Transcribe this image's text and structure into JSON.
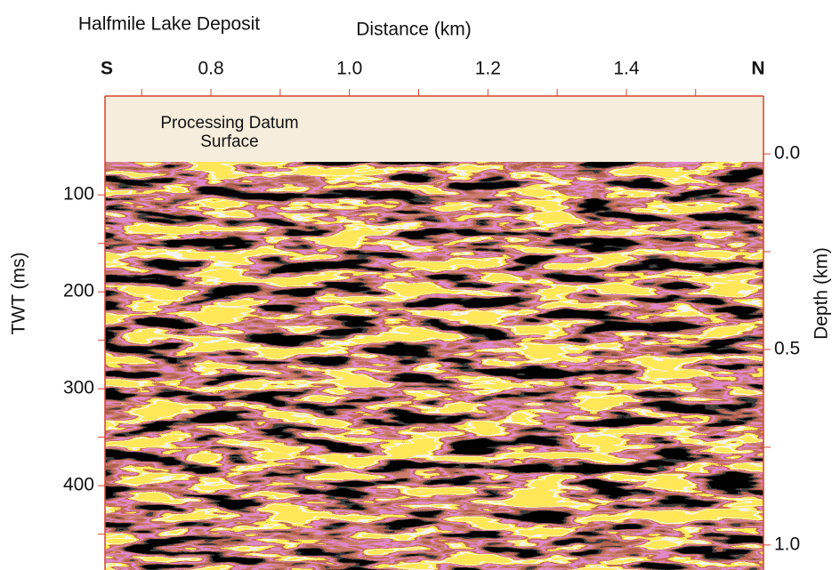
{
  "chart_data": {
    "type": "seismic",
    "title": "Halfmile Lake Deposit",
    "xlabel": "Distance (km)",
    "ylabel": "TWT (ms)",
    "y2label": "Depth (km)",
    "left_end_label": "S",
    "right_end_label": "N",
    "annotations": [
      "Processing Datum",
      "Surface"
    ],
    "xlim": [
      0.647,
      1.598
    ],
    "xticks": [
      {
        "value": 0.8,
        "label": "0.8"
      },
      {
        "value": 1,
        "label": "1.0"
      },
      {
        "value": 1.2,
        "label": "1.2"
      },
      {
        "value": 1.4,
        "label": "1.4"
      }
    ],
    "xminor_ticks": [
      0.7,
      0.9,
      1.1,
      1.3,
      1.5
    ],
    "ylim": [
      -2,
      487
    ],
    "yticks": [
      100,
      200,
      300,
      400
    ],
    "yminor_ticks": [
      150,
      250,
      350,
      450
    ],
    "y2lim": [
      -0.148,
      1.064
    ],
    "y2ticks": [
      {
        "value": 0,
        "label": "0.0"
      },
      {
        "value": 0.5,
        "label": "0.5"
      },
      {
        "value": 1,
        "label": "1.0"
      }
    ],
    "y2minor_ticks": [
      0.25,
      0.75
    ],
    "frame_color": "#d8402f"
  }
}
